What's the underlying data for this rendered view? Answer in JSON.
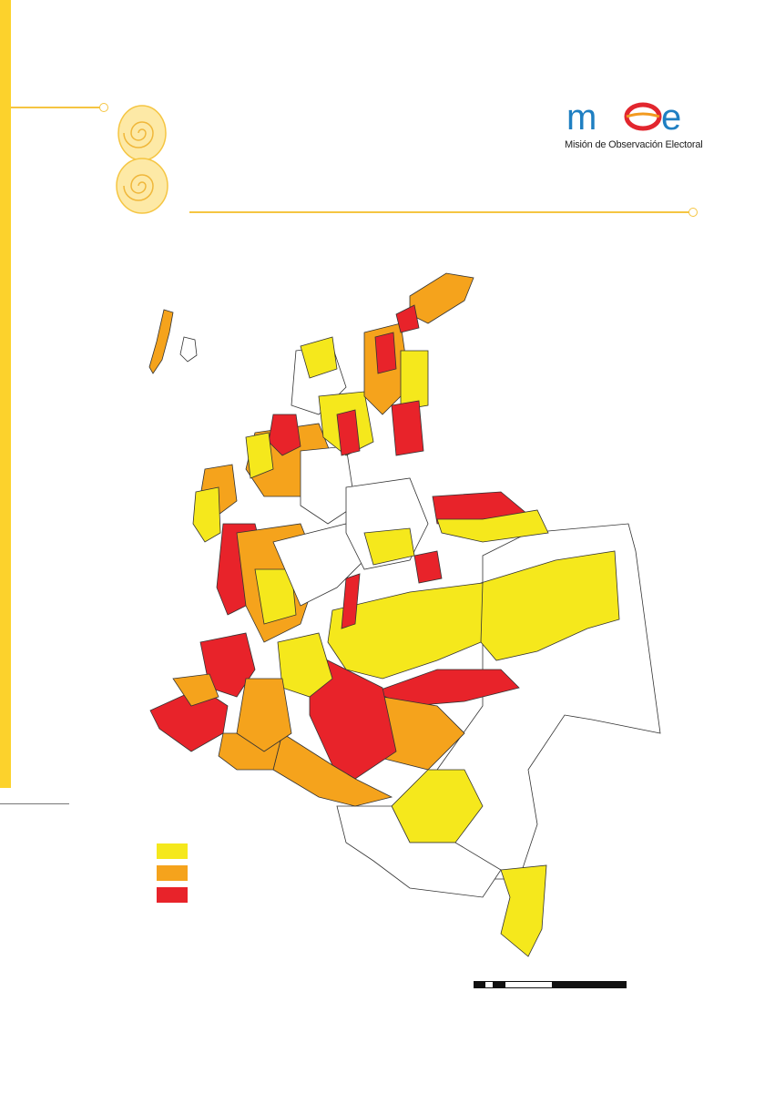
{
  "logo": {
    "text": "Misión de Observación Electoral",
    "brand_colors": {
      "blue": "#1f7fc2",
      "red": "#e2262e",
      "orange": "#f29a1f"
    }
  },
  "legend": {
    "items": [
      {
        "label": "",
        "color": "#f5e81c"
      },
      {
        "label": "",
        "color": "#f5a31c"
      },
      {
        "label": "",
        "color": "#e8232a"
      }
    ]
  },
  "map": {
    "region_colors": {
      "low": "#f5e81c",
      "medium": "#f5a31c",
      "high": "#e8232a",
      "none": "#ffffff"
    }
  },
  "colors": {
    "accent": "#fcd22c",
    "rule": "#f5c542"
  }
}
